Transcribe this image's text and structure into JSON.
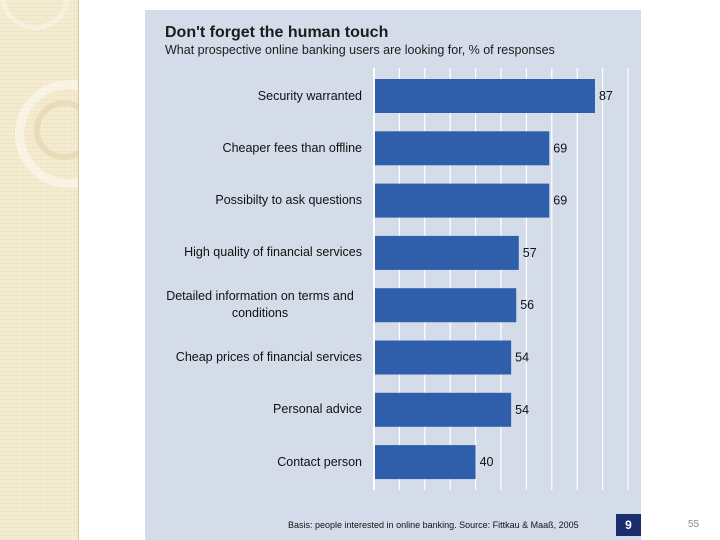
{
  "slide": {
    "footer_note": "Basis: people interested in online banking. Source: Fittkau & Maaß, 2005",
    "page_badge": "9",
    "slide_number": "55"
  },
  "chart_data": {
    "type": "bar",
    "orientation": "horizontal",
    "title": "Don't forget the human touch",
    "subtitle": "What prospective online banking users are looking for, % of responses",
    "categories": [
      "Security warranted",
      "Cheaper fees than offline",
      "Possibilty to ask questions",
      "High quality of financial services",
      "Detailed information on terms and conditions",
      "Cheap prices of financial services",
      "Personal advice",
      "Contact person"
    ],
    "values": [
      87,
      69,
      69,
      57,
      56,
      54,
      54,
      40
    ],
    "xlim": [
      0,
      100
    ],
    "grid": true,
    "legend": "none",
    "colors": {
      "bar": "#2f5faa",
      "grid": "#ffffff",
      "panel": "#d4dcea",
      "badge": "#1a2e6e"
    }
  }
}
